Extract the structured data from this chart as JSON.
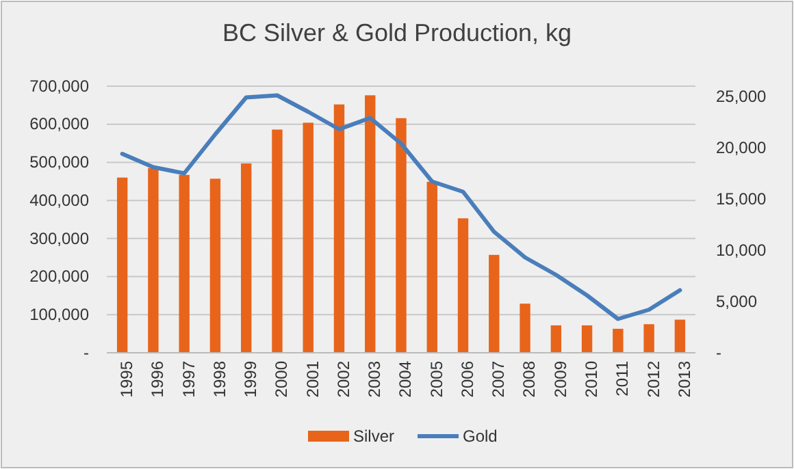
{
  "chart_data": {
    "type": "bar",
    "title": "BC Silver & Gold Production, kg",
    "categories": [
      "1995",
      "1996",
      "1997",
      "1998",
      "1999",
      "2000",
      "2001",
      "2002",
      "2003",
      "2004",
      "2005",
      "2006",
      "2007",
      "2008",
      "2009",
      "2010",
      "2011",
      "2012",
      "2013"
    ],
    "series": [
      {
        "name": "Silver",
        "color": "#e8641b",
        "values": [
          460000,
          485000,
          467000,
          457000,
          497000,
          586000,
          604000,
          652000,
          676000,
          616000,
          449000,
          353000,
          257000,
          129000,
          72000,
          72000,
          63000,
          75000,
          87000
        ]
      },
      {
        "name": "Gold",
        "type": "line",
        "axis": "y2",
        "color": "#4a7ebb",
        "values": [
          19400,
          18100,
          17500,
          21300,
          24900,
          25100,
          23500,
          21800,
          22900,
          20400,
          16700,
          15700,
          11800,
          9300,
          7600,
          5600,
          3300,
          4200,
          6100
        ]
      }
    ],
    "ylim": [
      0,
      700000
    ],
    "yticks": [
      {
        "value": 0,
        "label": "-"
      },
      {
        "value": 100000,
        "label": "100,000"
      },
      {
        "value": 200000,
        "label": "200,000"
      },
      {
        "value": 300000,
        "label": "300,000"
      },
      {
        "value": 400000,
        "label": "400,000"
      },
      {
        "value": 500000,
        "label": "500,000"
      },
      {
        "value": 600000,
        "label": "600,000"
      },
      {
        "value": 700000,
        "label": "700,000"
      }
    ],
    "y2lim": [
      0,
      26000
    ],
    "y2ticks": [
      {
        "value": 0,
        "label": "-"
      },
      {
        "value": 5000,
        "label": "5,000"
      },
      {
        "value": 10000,
        "label": "10,000"
      },
      {
        "value": 15000,
        "label": "15,000"
      },
      {
        "value": 20000,
        "label": "20,000"
      },
      {
        "value": 25000,
        "label": "25,000"
      }
    ],
    "grid": "y",
    "legend": "bottom"
  }
}
